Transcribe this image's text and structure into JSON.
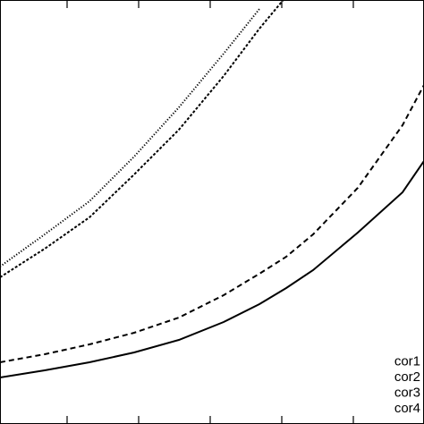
{
  "chart_data": {
    "type": "line",
    "x": [
      0,
      50,
      100,
      150,
      200,
      250,
      290,
      320,
      350,
      400,
      450,
      474
    ],
    "xlim": [
      0,
      474
    ],
    "xticks": [
      75,
      155,
      235,
      315,
      395
    ],
    "ylim": [
      0,
      474
    ],
    "legend": "lower right",
    "series": [
      {
        "name": "cor1",
        "color": "#000000",
        "dash": "solid",
        "values": [
          52,
          60,
          69,
          80,
          94,
          114,
          134,
          152,
          172,
          214,
          259,
          294
        ]
      },
      {
        "name": "cor2",
        "color": "#000000",
        "dash": "dashed",
        "values": [
          69,
          78,
          89,
          102,
          119,
          144,
          168,
          187,
          212,
          264,
          334,
          379
        ]
      },
      {
        "name": "cor3",
        "color": "#000000",
        "dash": "finedashed",
        "values": [
          164,
          196,
          231,
          279,
          329,
          389,
          442,
          478,
          null,
          null,
          null,
          null
        ]
      },
      {
        "name": "cor4",
        "color": "#000000",
        "dash": "dotted",
        "values": [
          176,
          212,
          249,
          299,
          354,
          414,
          464,
          null,
          null,
          null,
          null,
          null
        ]
      }
    ]
  }
}
